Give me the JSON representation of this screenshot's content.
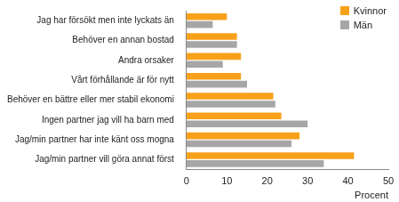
{
  "chart_data": {
    "type": "bar",
    "orientation": "horizontal",
    "categories": [
      "Jag har försökt men inte lyckats än",
      "Behöver en annan bostad",
      "Andra orsaker",
      "Vårt förhållande är för nytt",
      "Behöver en bättre eller mer stabil ekonomi",
      "Ingen partner jag vill ha barn med",
      "Jag/min partner har inte känt oss mogna",
      "Jag/min partner vill göra annat först"
    ],
    "series": [
      {
        "name": "Kvinnor",
        "color": "#f7a11a",
        "values": [
          10,
          12.5,
          13.5,
          13.5,
          21.5,
          23.5,
          28,
          41.5
        ]
      },
      {
        "name": "Män",
        "color": "#a6a6a6",
        "values": [
          6.5,
          12.5,
          9,
          15,
          22,
          30,
          26,
          34
        ]
      }
    ],
    "x_label": "Procent",
    "xlim": [
      0,
      50
    ],
    "xticks": [
      0,
      10,
      20,
      30,
      40,
      50
    ],
    "grid": false,
    "legend": "upper right"
  }
}
